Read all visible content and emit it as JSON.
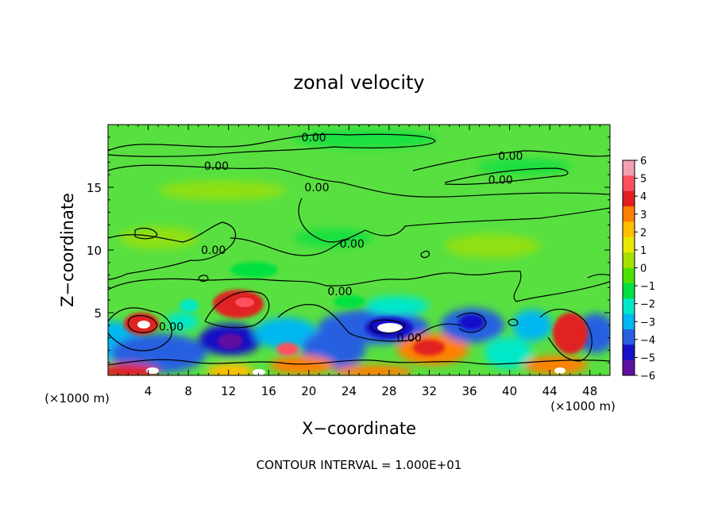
{
  "chart_data": {
    "type": "heatmap",
    "title": "zonal velocity",
    "xlabel": "X−coordinate",
    "ylabel": "Z−coordinate",
    "x_unit_label": "(×1000 m)",
    "x_unit_label_right": "(×1000 m)",
    "xlim": [
      0,
      50
    ],
    "ylim": [
      0,
      20
    ],
    "x_ticks": [
      4,
      8,
      12,
      16,
      20,
      24,
      28,
      32,
      36,
      40,
      44,
      48
    ],
    "x_tick_labels": [
      "4",
      "8",
      "12",
      "16",
      "20",
      "24",
      "28",
      "32",
      "36",
      "40",
      "44",
      "48"
    ],
    "y_ticks": [
      5,
      10,
      15
    ],
    "y_tick_labels": [
      "5",
      "10",
      "15"
    ],
    "contour_interval_text": "CONTOUR INTERVAL = 1.000E+01",
    "contour_labels": [
      {
        "text": "0.00",
        "x": 20.5,
        "y": 19.0
      },
      {
        "text": "0.00",
        "x": 10.8,
        "y": 16.7
      },
      {
        "text": "0.00",
        "x": 20.8,
        "y": 15.0
      },
      {
        "text": "0.00",
        "x": 40.1,
        "y": 17.5
      },
      {
        "text": "0.00",
        "x": 39.1,
        "y": 15.6
      },
      {
        "text": "0.00",
        "x": 10.5,
        "y": 10.0
      },
      {
        "text": "0.00",
        "x": 24.3,
        "y": 10.5
      },
      {
        "text": "0.00",
        "x": 23.1,
        "y": 6.7
      },
      {
        "text": "0.00",
        "x": 6.3,
        "y": 3.9
      },
      {
        "text": "0.00",
        "x": 30.0,
        "y": 3.0
      }
    ],
    "colorbar": {
      "levels": [
        6,
        5,
        4,
        3,
        2,
        1,
        0,
        -1,
        -2,
        -3,
        -4,
        -5,
        -6
      ],
      "level_labels": [
        "6",
        "5",
        "4",
        "3",
        "2",
        "1",
        "0",
        "−1",
        "−2",
        "−3",
        "−4",
        "−5",
        "−6"
      ],
      "colors": [
        "#f2a0b0",
        "#ff5060",
        "#e02020",
        "#ff8000",
        "#ffc000",
        "#e8e800",
        "#a8e000",
        "#50e000",
        "#00e040",
        "#00e8c8",
        "#00b8f0",
        "#2860e0",
        "#1810c8",
        "#6010a0"
      ]
    },
    "background_color": "#58e040",
    "features": [
      {
        "x": 4.2,
        "y": 3.9,
        "value": 6
      },
      {
        "x": 13.5,
        "y": 5.5,
        "value": 5
      },
      {
        "x": 12.0,
        "y": 2.8,
        "value": -5
      },
      {
        "x": 27.5,
        "y": 3.8,
        "value": -6
      },
      {
        "x": 36.0,
        "y": 4.1,
        "value": -5
      },
      {
        "x": 45.5,
        "y": 3.0,
        "value": 4
      },
      {
        "x": 32.0,
        "y": 2.4,
        "value": 3
      },
      {
        "x": 18.5,
        "y": 2.0,
        "value": 4
      },
      {
        "x": 0.8,
        "y": 0.3,
        "value": 5
      }
    ]
  }
}
